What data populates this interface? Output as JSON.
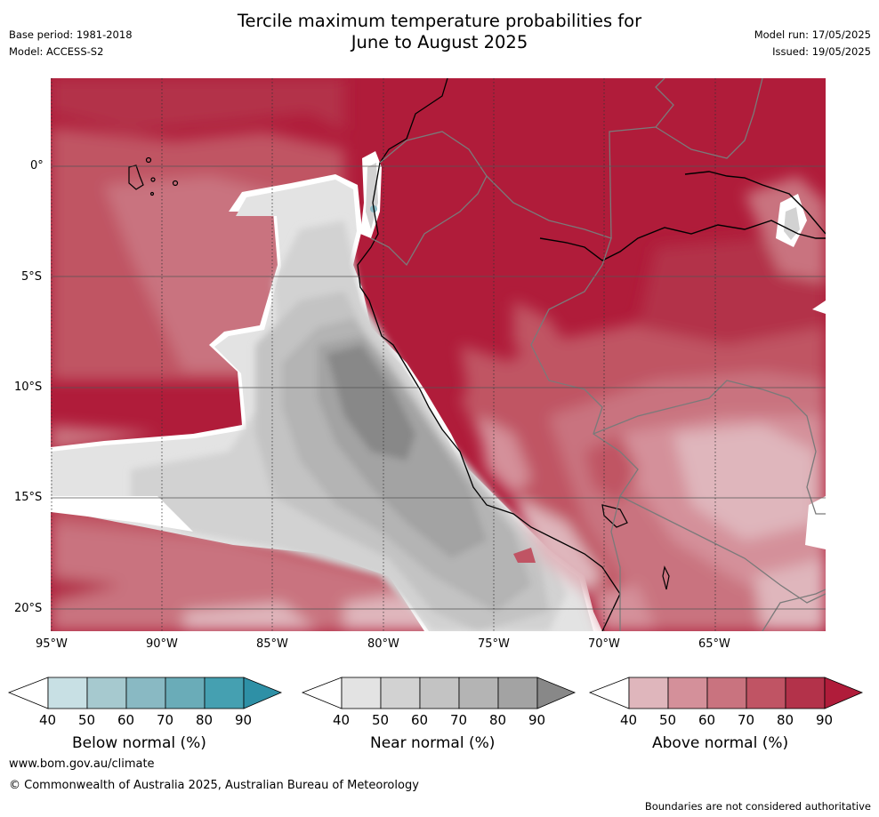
{
  "header": {
    "title_line1": "Tercile maximum temperature probabilities for",
    "title_line2": "June to August 2025",
    "base_period": "Base period: 1981-2018",
    "model": "Model: ACCESS-S2",
    "model_run": "Model run: 17/05/2025",
    "issued": "Issued: 19/05/2025"
  },
  "map": {
    "lat_labels": [
      "0°",
      "5°S",
      "10°S",
      "15°S",
      "20°S"
    ],
    "lon_labels": [
      "95°W",
      "90°W",
      "85°W",
      "80°W",
      "75°W",
      "70°W",
      "65°W"
    ]
  },
  "colorbars": [
    {
      "name": "below",
      "title": "Below normal (%)",
      "ticks": [
        "40",
        "50",
        "60",
        "70",
        "80",
        "90"
      ],
      "colors": [
        "#ffffff",
        "#c8e0e4",
        "#a6c9cf",
        "#89b9c3",
        "#6aacb8",
        "#45a0b1",
        "#2e90a6"
      ]
    },
    {
      "name": "near",
      "title": "Near normal (%)",
      "ticks": [
        "40",
        "50",
        "60",
        "70",
        "80",
        "90"
      ],
      "colors": [
        "#ffffff",
        "#e3e3e3",
        "#d2d2d2",
        "#c3c3c3",
        "#b4b4b4",
        "#a3a3a3",
        "#888888"
      ]
    },
    {
      "name": "above",
      "title": "Above normal (%)",
      "ticks": [
        "40",
        "50",
        "60",
        "70",
        "80",
        "90"
      ],
      "colors": [
        "#ffffff",
        "#dfb6bc",
        "#d4909a",
        "#c9737f",
        "#c05464",
        "#b3324a",
        "#b01c3a"
      ]
    }
  ],
  "footer": {
    "website": "www.bom.gov.au/climate",
    "copyright": "© Commonwealth of Australia 2025, Australian Bureau of Meteorology",
    "disclaimer": "Boundaries are not considered authoritative"
  }
}
